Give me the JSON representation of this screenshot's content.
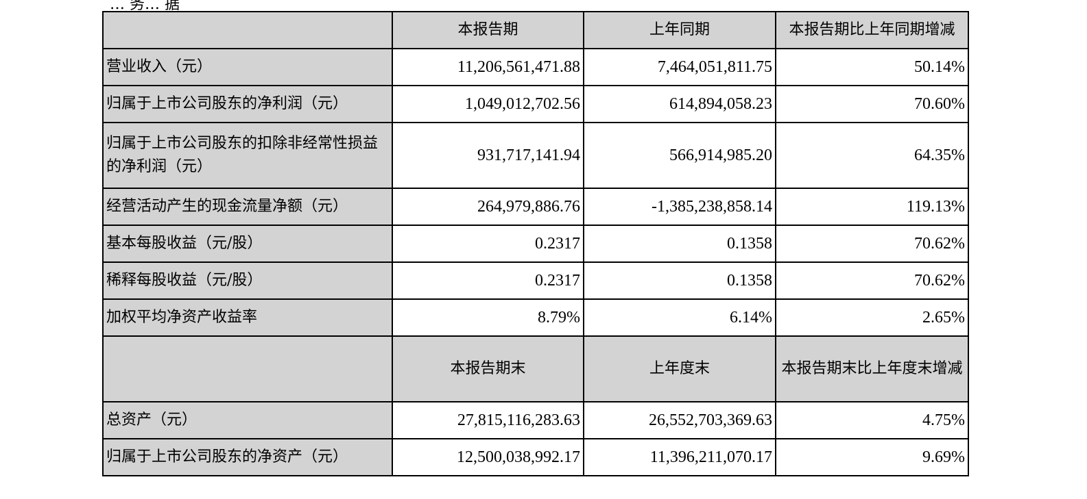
{
  "page": {
    "top_fragment": "… 务… 据"
  },
  "table": {
    "header1": [
      "",
      "本报告期",
      "上年同期",
      "本报告期比上年同期增减"
    ],
    "rows1": [
      {
        "label": "营业收入（元）",
        "current": "11,206,561,471.88",
        "prior": "7,464,051,811.75",
        "change": "50.14%"
      },
      {
        "label": "归属于上市公司股东的净利润（元）",
        "current": "1,049,012,702.56",
        "prior": "614,894,058.23",
        "change": "70.60%"
      },
      {
        "label": "归属于上市公司股东的扣除非经常性损益的净利润（元）",
        "current": "931,717,141.94",
        "prior": "566,914,985.20",
        "change": "64.35%"
      },
      {
        "label": "经营活动产生的现金流量净额（元）",
        "current": "264,979,886.76",
        "prior": "-1,385,238,858.14",
        "change": "119.13%"
      },
      {
        "label": "基本每股收益（元/股）",
        "current": "0.2317",
        "prior": "0.1358",
        "change": "70.62%"
      },
      {
        "label": "稀释每股收益（元/股）",
        "current": "0.2317",
        "prior": "0.1358",
        "change": "70.62%"
      },
      {
        "label": "加权平均净资产收益率",
        "current": "8.79%",
        "prior": "6.14%",
        "change": "2.65%"
      }
    ],
    "header2": [
      "",
      "本报告期末",
      "上年度末",
      "本报告期末比上年度末增减"
    ],
    "rows2": [
      {
        "label": "总资产（元）",
        "current": "27,815,116,283.63",
        "prior": "26,552,703,369.63",
        "change": "4.75%"
      },
      {
        "label": "归属于上市公司股东的净资产（元）",
        "current": "12,500,038,992.17",
        "prior": "11,396,211,070.17",
        "change": "9.69%"
      }
    ]
  }
}
